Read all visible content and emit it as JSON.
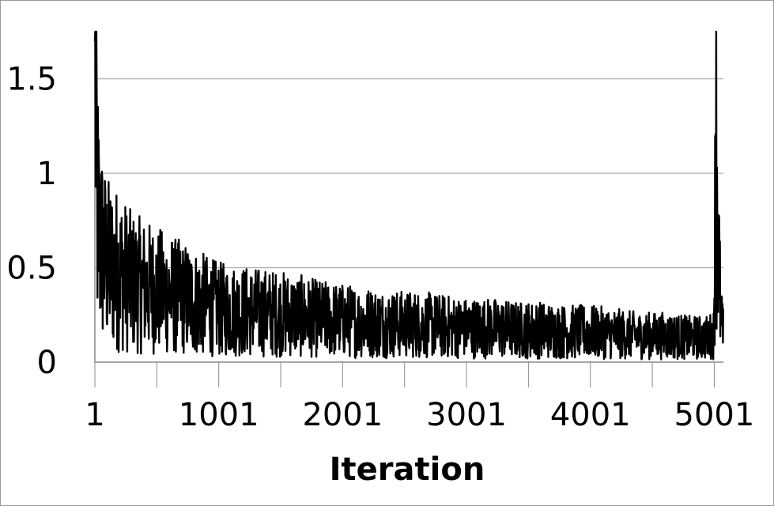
{
  "chart_data": {
    "type": "line",
    "title": "",
    "xlabel": "Iteration",
    "ylabel": "",
    "xlim": [
      1,
      5075
    ],
    "ylim": [
      0,
      1.75
    ],
    "x_ticks": [
      1,
      1001,
      2001,
      3001,
      4001,
      5001
    ],
    "x_tick_labels": [
      "1",
      "1001",
      "2001",
      "3001",
      "4001",
      "5001"
    ],
    "y_ticks": [
      0,
      0.5,
      1,
      1.5
    ],
    "y_tick_labels": [
      "0",
      "0.5",
      "1",
      "1.5"
    ],
    "grid": "horizontal",
    "legend": "none",
    "line_color": "#000000",
    "series": [
      {
        "x": [
          1,
          20,
          40,
          60,
          80,
          100,
          150,
          200,
          250,
          300,
          400,
          500,
          600,
          700,
          800,
          900,
          1001,
          1200,
          1400,
          1600,
          1800,
          2001,
          2200,
          2400,
          2600,
          2800,
          3001,
          3200,
          3400,
          3600,
          3800,
          4001,
          4200,
          4400,
          4600,
          4800,
          4950,
          5001,
          5010,
          5020,
          5030,
          5040,
          5050,
          5060,
          5075
        ],
        "values": [
          1.7,
          0.85,
          0.65,
          0.6,
          0.55,
          0.52,
          0.5,
          0.48,
          0.45,
          0.42,
          0.4,
          0.38,
          0.36,
          0.34,
          0.32,
          0.3,
          0.28,
          0.27,
          0.26,
          0.25,
          0.23,
          0.22,
          0.21,
          0.2,
          0.2,
          0.19,
          0.18,
          0.18,
          0.17,
          0.17,
          0.16,
          0.16,
          0.15,
          0.14,
          0.14,
          0.13,
          0.13,
          0.15,
          1.7,
          1.15,
          0.75,
          0.5,
          0.3,
          0.2,
          0.15
        ]
      }
    ]
  }
}
